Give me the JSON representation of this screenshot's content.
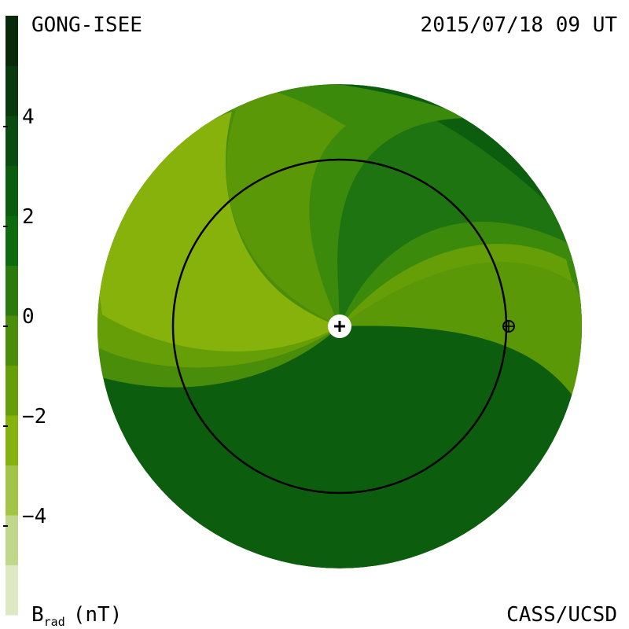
{
  "header": {
    "left": "GONG-ISEE",
    "right": "2015/07/18 09 UT"
  },
  "footer": {
    "quantity": "B",
    "subscript": "rad",
    "unit": "(nT)",
    "credit": "CASS/UCSD"
  },
  "colorbar": {
    "lim": [
      -6,
      6
    ],
    "ticks": [
      4,
      2,
      0,
      {
        "value": -2,
        "label": "−2"
      },
      {
        "value": -4,
        "label": "−4"
      }
    ],
    "colors": [
      "#dde9c2",
      "#c0d88c",
      "#a3c545",
      "#87b20b",
      "#669e07",
      "#4a8d0b",
      "#2a7b0e",
      "#0c6a0f",
      "#0c5c0e",
      "#0a4b0f",
      "#093a0e",
      "#082a0b"
    ]
  }
}
